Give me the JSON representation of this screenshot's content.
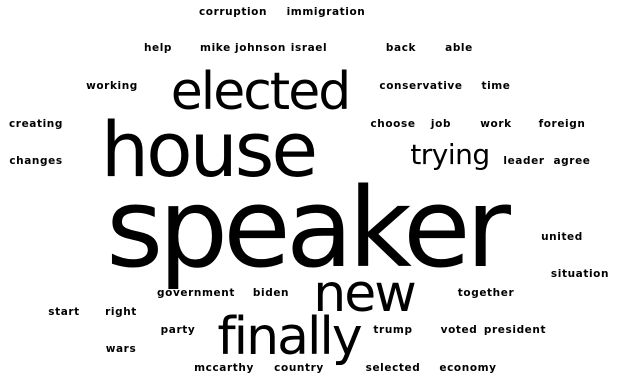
{
  "words": [
    {
      "text": "corruption"
    },
    {
      "text": "immigration"
    },
    {
      "text": "help"
    },
    {
      "text": "mike johnson"
    },
    {
      "text": "israel"
    },
    {
      "text": "back"
    },
    {
      "text": "able"
    },
    {
      "text": "elected"
    },
    {
      "text": "working"
    },
    {
      "text": "conservative"
    },
    {
      "text": "time"
    },
    {
      "text": "creating"
    },
    {
      "text": "house"
    },
    {
      "text": "choose"
    },
    {
      "text": "job"
    },
    {
      "text": "work"
    },
    {
      "text": "foreign"
    },
    {
      "text": "changes"
    },
    {
      "text": "trying"
    },
    {
      "text": "leader"
    },
    {
      "text": "agree"
    },
    {
      "text": "speaker"
    },
    {
      "text": "united"
    },
    {
      "text": "situation"
    },
    {
      "text": "government"
    },
    {
      "text": "biden"
    },
    {
      "text": "new"
    },
    {
      "text": "together"
    },
    {
      "text": "start"
    },
    {
      "text": "right"
    },
    {
      "text": "party"
    },
    {
      "text": "finally"
    },
    {
      "text": "trump"
    },
    {
      "text": "voted"
    },
    {
      "text": "president"
    },
    {
      "text": "wars"
    },
    {
      "text": "mccarthy"
    },
    {
      "text": "country"
    },
    {
      "text": "selected"
    },
    {
      "text": "economy"
    }
  ]
}
